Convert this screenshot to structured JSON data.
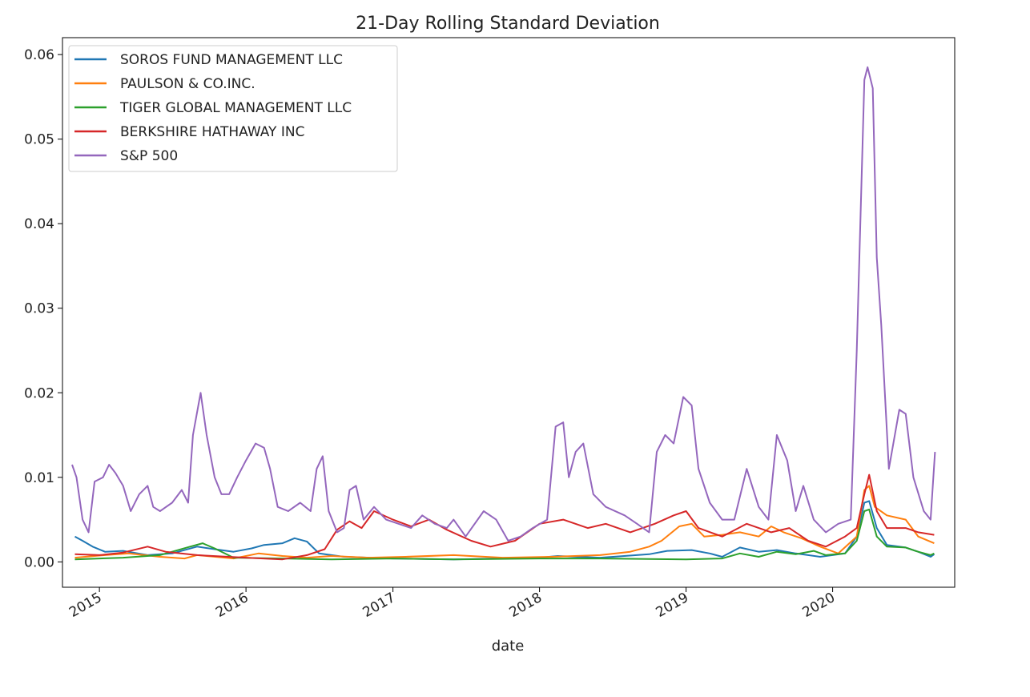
{
  "chart_data": {
    "type": "line",
    "title": "21-Day Rolling Standard Deviation",
    "xlabel": "date",
    "ylabel": "",
    "xlim": [
      "2014-10-01",
      "2020-10-31"
    ],
    "ylim": [
      -0.003,
      0.062
    ],
    "x_ticks": [
      "2015-01-01",
      "2016-01-01",
      "2017-01-01",
      "2018-01-01",
      "2019-01-01",
      "2020-01-01"
    ],
    "x_tick_labels": [
      "2015",
      "2016",
      "2017",
      "2018",
      "2019",
      "2020"
    ],
    "y_ticks": [
      0.0,
      0.01,
      0.02,
      0.03,
      0.04,
      0.05,
      0.06
    ],
    "y_tick_labels": [
      "0.00",
      "0.01",
      "0.02",
      "0.03",
      "0.04",
      "0.05",
      "0.06"
    ],
    "legend_position": "top-left",
    "grid": false,
    "series": [
      {
        "name": "SOROS FUND MANAGEMENT LLC",
        "color": "#1f77b4",
        "points": [
          [
            "2014-11-01",
            0.003
          ],
          [
            "2014-11-20",
            0.0025
          ],
          [
            "2014-12-15",
            0.0018
          ],
          [
            "2015-01-15",
            0.0012
          ],
          [
            "2015-03-01",
            0.0013
          ],
          [
            "2015-05-01",
            0.0008
          ],
          [
            "2015-07-01",
            0.001
          ],
          [
            "2015-09-01",
            0.0018
          ],
          [
            "2015-10-15",
            0.0015
          ],
          [
            "2015-12-01",
            0.0012
          ],
          [
            "2016-01-15",
            0.0016
          ],
          [
            "2016-02-15",
            0.002
          ],
          [
            "2016-04-01",
            0.0022
          ],
          [
            "2016-05-01",
            0.0028
          ],
          [
            "2016-06-01",
            0.0024
          ],
          [
            "2016-07-01",
            0.001
          ],
          [
            "2016-09-01",
            0.0006
          ],
          [
            "2017-01-01",
            0.0004
          ],
          [
            "2017-06-01",
            0.0003
          ],
          [
            "2018-01-01",
            0.0005
          ],
          [
            "2018-02-15",
            0.0007
          ],
          [
            "2018-06-01",
            0.0005
          ],
          [
            "2018-10-01",
            0.0009
          ],
          [
            "2018-11-15",
            0.0013
          ],
          [
            "2019-01-15",
            0.0014
          ],
          [
            "2019-03-01",
            0.001
          ],
          [
            "2019-04-01",
            0.0006
          ],
          [
            "2019-05-15",
            0.0017
          ],
          [
            "2019-07-01",
            0.0012
          ],
          [
            "2019-08-15",
            0.0014
          ],
          [
            "2019-10-01",
            0.001
          ],
          [
            "2019-12-01",
            0.0006
          ],
          [
            "2020-02-01",
            0.001
          ],
          [
            "2020-03-01",
            0.003
          ],
          [
            "2020-03-20",
            0.007
          ],
          [
            "2020-04-01",
            0.0072
          ],
          [
            "2020-04-20",
            0.004
          ],
          [
            "2020-05-15",
            0.002
          ],
          [
            "2020-07-01",
            0.0017
          ],
          [
            "2020-08-01",
            0.0012
          ],
          [
            "2020-09-01",
            0.0006
          ],
          [
            "2020-09-10",
            0.0009
          ]
        ]
      },
      {
        "name": "PAULSON & CO.INC.",
        "color": "#ff7f0e",
        "points": [
          [
            "2014-11-01",
            0.0005
          ],
          [
            "2015-01-15",
            0.0008
          ],
          [
            "2015-03-15",
            0.001
          ],
          [
            "2015-06-01",
            0.0006
          ],
          [
            "2015-08-01",
            0.0004
          ],
          [
            "2015-09-01",
            0.0008
          ],
          [
            "2015-12-01",
            0.0004
          ],
          [
            "2016-02-01",
            0.001
          ],
          [
            "2016-04-01",
            0.0007
          ],
          [
            "2016-06-01",
            0.0005
          ],
          [
            "2016-08-01",
            0.0007
          ],
          [
            "2016-11-01",
            0.0005
          ],
          [
            "2017-02-01",
            0.0006
          ],
          [
            "2017-06-01",
            0.0008
          ],
          [
            "2017-10-01",
            0.0005
          ],
          [
            "2018-02-01",
            0.0006
          ],
          [
            "2018-06-01",
            0.0008
          ],
          [
            "2018-08-15",
            0.0012
          ],
          [
            "2018-10-01",
            0.0018
          ],
          [
            "2018-11-01",
            0.0025
          ],
          [
            "2018-12-15",
            0.0042
          ],
          [
            "2019-01-15",
            0.0045
          ],
          [
            "2019-02-15",
            0.003
          ],
          [
            "2019-04-01",
            0.0032
          ],
          [
            "2019-05-15",
            0.0035
          ],
          [
            "2019-07-01",
            0.003
          ],
          [
            "2019-08-01",
            0.0042
          ],
          [
            "2019-09-01",
            0.0035
          ],
          [
            "2019-10-15",
            0.0028
          ],
          [
            "2019-12-01",
            0.0018
          ],
          [
            "2020-01-15",
            0.001
          ],
          [
            "2020-03-01",
            0.003
          ],
          [
            "2020-03-20",
            0.0085
          ],
          [
            "2020-04-01",
            0.009
          ],
          [
            "2020-04-15",
            0.0065
          ],
          [
            "2020-05-15",
            0.0055
          ],
          [
            "2020-07-01",
            0.005
          ],
          [
            "2020-08-01",
            0.003
          ],
          [
            "2020-09-10",
            0.0022
          ]
        ]
      },
      {
        "name": "TIGER GLOBAL MANAGEMENT LLC",
        "color": "#2ca02c",
        "points": [
          [
            "2014-11-01",
            0.0003
          ],
          [
            "2015-03-01",
            0.0005
          ],
          [
            "2015-06-01",
            0.0008
          ],
          [
            "2015-08-15",
            0.0018
          ],
          [
            "2015-09-15",
            0.0022
          ],
          [
            "2015-10-15",
            0.0016
          ],
          [
            "2015-12-01",
            0.0005
          ],
          [
            "2016-04-01",
            0.0004
          ],
          [
            "2016-08-01",
            0.0003
          ],
          [
            "2017-01-01",
            0.0004
          ],
          [
            "2017-06-01",
            0.0003
          ],
          [
            "2018-01-01",
            0.0004
          ],
          [
            "2018-06-01",
            0.0004
          ],
          [
            "2019-01-01",
            0.0003
          ],
          [
            "2019-04-01",
            0.0004
          ],
          [
            "2019-05-15",
            0.001
          ],
          [
            "2019-07-01",
            0.0006
          ],
          [
            "2019-08-15",
            0.0012
          ],
          [
            "2019-10-01",
            0.0009
          ],
          [
            "2019-11-15",
            0.0013
          ],
          [
            "2019-12-15",
            0.0008
          ],
          [
            "2020-02-01",
            0.001
          ],
          [
            "2020-03-01",
            0.0025
          ],
          [
            "2020-03-20",
            0.006
          ],
          [
            "2020-04-01",
            0.0062
          ],
          [
            "2020-04-20",
            0.003
          ],
          [
            "2020-05-15",
            0.0018
          ],
          [
            "2020-07-01",
            0.0017
          ],
          [
            "2020-08-01",
            0.0012
          ],
          [
            "2020-09-01",
            0.0008
          ],
          [
            "2020-09-10",
            0.001
          ]
        ]
      },
      {
        "name": "BERKSHIRE HATHAWAY INC",
        "color": "#d62728",
        "points": [
          [
            "2014-11-01",
            0.0009
          ],
          [
            "2015-01-01",
            0.0008
          ],
          [
            "2015-03-01",
            0.0011
          ],
          [
            "2015-05-01",
            0.0018
          ],
          [
            "2015-06-15",
            0.0012
          ],
          [
            "2015-09-01",
            0.0008
          ],
          [
            "2016-01-01",
            0.0005
          ],
          [
            "2016-04-01",
            0.0003
          ],
          [
            "2016-06-01",
            0.0008
          ],
          [
            "2016-07-15",
            0.0015
          ],
          [
            "2016-08-15",
            0.0038
          ],
          [
            "2016-09-15",
            0.0048
          ],
          [
            "2016-10-15",
            0.004
          ],
          [
            "2016-11-15",
            0.006
          ],
          [
            "2017-01-01",
            0.005
          ],
          [
            "2017-02-15",
            0.0042
          ],
          [
            "2017-04-01",
            0.005
          ],
          [
            "2017-05-15",
            0.0038
          ],
          [
            "2017-07-15",
            0.0025
          ],
          [
            "2017-09-01",
            0.0018
          ],
          [
            "2017-11-01",
            0.0025
          ],
          [
            "2018-01-01",
            0.0045
          ],
          [
            "2018-03-01",
            0.005
          ],
          [
            "2018-05-01",
            0.004
          ],
          [
            "2018-06-15",
            0.0045
          ],
          [
            "2018-08-15",
            0.0035
          ],
          [
            "2018-10-15",
            0.0045
          ],
          [
            "2018-12-01",
            0.0055
          ],
          [
            "2019-01-01",
            0.006
          ],
          [
            "2019-02-01",
            0.004
          ],
          [
            "2019-04-01",
            0.003
          ],
          [
            "2019-06-01",
            0.0045
          ],
          [
            "2019-08-01",
            0.0035
          ],
          [
            "2019-09-15",
            0.004
          ],
          [
            "2019-11-01",
            0.0025
          ],
          [
            "2019-12-15",
            0.0018
          ],
          [
            "2020-02-01",
            0.003
          ],
          [
            "2020-03-01",
            0.004
          ],
          [
            "2020-03-20",
            0.008
          ],
          [
            "2020-04-01",
            0.0103
          ],
          [
            "2020-04-20",
            0.006
          ],
          [
            "2020-05-15",
            0.004
          ],
          [
            "2020-07-01",
            0.004
          ],
          [
            "2020-08-01",
            0.0035
          ],
          [
            "2020-09-10",
            0.0032
          ]
        ]
      },
      {
        "name": "S&P 500",
        "color": "#9467bd",
        "points": [
          [
            "2014-10-25",
            0.0115
          ],
          [
            "2014-11-05",
            0.01
          ],
          [
            "2014-11-20",
            0.005
          ],
          [
            "2014-12-05",
            0.0035
          ],
          [
            "2014-12-20",
            0.0095
          ],
          [
            "2015-01-10",
            0.01
          ],
          [
            "2015-01-25",
            0.0115
          ],
          [
            "2015-02-10",
            0.0105
          ],
          [
            "2015-03-01",
            0.009
          ],
          [
            "2015-03-20",
            0.006
          ],
          [
            "2015-04-10",
            0.008
          ],
          [
            "2015-05-01",
            0.009
          ],
          [
            "2015-05-15",
            0.0065
          ],
          [
            "2015-06-01",
            0.006
          ],
          [
            "2015-07-01",
            0.007
          ],
          [
            "2015-07-25",
            0.0085
          ],
          [
            "2015-08-10",
            0.007
          ],
          [
            "2015-08-22",
            0.015
          ],
          [
            "2015-09-10",
            0.02
          ],
          [
            "2015-09-25",
            0.015
          ],
          [
            "2015-10-15",
            0.01
          ],
          [
            "2015-11-01",
            0.008
          ],
          [
            "2015-11-20",
            0.008
          ],
          [
            "2015-12-10",
            0.01
          ],
          [
            "2016-01-01",
            0.012
          ],
          [
            "2016-01-25",
            0.014
          ],
          [
            "2016-02-15",
            0.0135
          ],
          [
            "2016-03-01",
            0.011
          ],
          [
            "2016-03-20",
            0.0065
          ],
          [
            "2016-04-15",
            0.006
          ],
          [
            "2016-05-15",
            0.007
          ],
          [
            "2016-06-10",
            0.006
          ],
          [
            "2016-06-25",
            0.011
          ],
          [
            "2016-07-10",
            0.0125
          ],
          [
            "2016-07-25",
            0.006
          ],
          [
            "2016-08-15",
            0.0035
          ],
          [
            "2016-09-01",
            0.004
          ],
          [
            "2016-09-15",
            0.0085
          ],
          [
            "2016-10-01",
            0.009
          ],
          [
            "2016-10-20",
            0.005
          ],
          [
            "2016-11-15",
            0.0065
          ],
          [
            "2016-12-15",
            0.005
          ],
          [
            "2017-01-15",
            0.0045
          ],
          [
            "2017-02-15",
            0.004
          ],
          [
            "2017-03-15",
            0.0055
          ],
          [
            "2017-04-15",
            0.0045
          ],
          [
            "2017-05-15",
            0.004
          ],
          [
            "2017-06-01",
            0.005
          ],
          [
            "2017-07-01",
            0.003
          ],
          [
            "2017-08-15",
            0.006
          ],
          [
            "2017-09-15",
            0.005
          ],
          [
            "2017-10-15",
            0.0025
          ],
          [
            "2017-11-15",
            0.003
          ],
          [
            "2017-12-15",
            0.004
          ],
          [
            "2018-01-20",
            0.005
          ],
          [
            "2018-02-10",
            0.016
          ],
          [
            "2018-03-01",
            0.0165
          ],
          [
            "2018-03-15",
            0.01
          ],
          [
            "2018-04-01",
            0.013
          ],
          [
            "2018-04-20",
            0.014
          ],
          [
            "2018-05-15",
            0.008
          ],
          [
            "2018-06-15",
            0.0065
          ],
          [
            "2018-08-01",
            0.0055
          ],
          [
            "2018-09-01",
            0.0045
          ],
          [
            "2018-10-01",
            0.0035
          ],
          [
            "2018-10-20",
            0.013
          ],
          [
            "2018-11-10",
            0.015
          ],
          [
            "2018-12-01",
            0.014
          ],
          [
            "2018-12-25",
            0.0195
          ],
          [
            "2019-01-15",
            0.0185
          ],
          [
            "2019-02-01",
            0.011
          ],
          [
            "2019-03-01",
            0.007
          ],
          [
            "2019-04-01",
            0.005
          ],
          [
            "2019-05-01",
            0.005
          ],
          [
            "2019-06-01",
            0.011
          ],
          [
            "2019-07-01",
            0.0065
          ],
          [
            "2019-07-25",
            0.005
          ],
          [
            "2019-08-15",
            0.015
          ],
          [
            "2019-09-10",
            0.012
          ],
          [
            "2019-10-01",
            0.006
          ],
          [
            "2019-10-20",
            0.009
          ],
          [
            "2019-11-15",
            0.005
          ],
          [
            "2019-12-15",
            0.0035
          ],
          [
            "2020-01-15",
            0.0045
          ],
          [
            "2020-02-15",
            0.005
          ],
          [
            "2020-03-01",
            0.025
          ],
          [
            "2020-03-20",
            0.057
          ],
          [
            "2020-03-28",
            0.0585
          ],
          [
            "2020-04-10",
            0.056
          ],
          [
            "2020-04-20",
            0.036
          ],
          [
            "2020-05-01",
            0.028
          ],
          [
            "2020-05-20",
            0.011
          ],
          [
            "2020-06-15",
            0.018
          ],
          [
            "2020-07-01",
            0.0175
          ],
          [
            "2020-07-20",
            0.01
          ],
          [
            "2020-08-15",
            0.006
          ],
          [
            "2020-09-01",
            0.005
          ],
          [
            "2020-09-12",
            0.013
          ]
        ]
      }
    ]
  }
}
